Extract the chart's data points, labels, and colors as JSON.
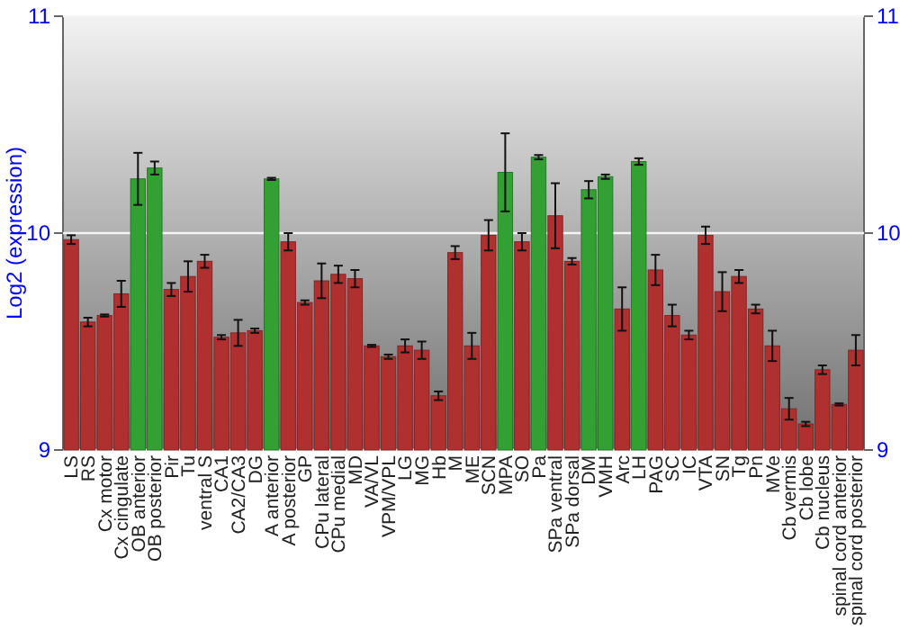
{
  "chart_data": {
    "type": "bar",
    "ylabel": "Log2 (expression)",
    "categories": [
      "LS",
      "RS",
      "Cx motor",
      "Cx cingulate",
      "OB anterior",
      "OB posterior",
      "Pir",
      "Tu",
      "ventral S",
      "CA1",
      "CA2/CA3",
      "DG",
      "A anterior",
      "A posterior",
      "GP",
      "CPu lateral",
      "CPu medial",
      "MD",
      "VA/VL",
      "VPM/VPL",
      "LG",
      "MG",
      "Hb",
      "M",
      "ME",
      "SCN",
      "MPA",
      "SO",
      "Pa",
      "SPa ventral",
      "SPa dorsal",
      "DM",
      "VMH",
      "Arc",
      "LH",
      "PAG",
      "SC",
      "IC",
      "VTA",
      "SN",
      "Tg",
      "Pn",
      "MVe",
      "Cb vermis",
      "Cb lobe",
      "Cb nucleus",
      "spinal cord anterior",
      "spinal cord posterior"
    ],
    "values": [
      9.97,
      9.59,
      9.62,
      9.72,
      10.25,
      10.3,
      9.74,
      9.8,
      9.87,
      9.52,
      9.54,
      9.55,
      10.25,
      9.96,
      9.68,
      9.78,
      9.81,
      9.79,
      9.48,
      9.43,
      9.48,
      9.46,
      9.25,
      9.91,
      9.48,
      9.99,
      10.28,
      9.96,
      10.35,
      10.08,
      9.87,
      10.2,
      10.26,
      9.65,
      10.33,
      9.83,
      9.62,
      9.53,
      9.99,
      9.73,
      9.8,
      9.65,
      9.48,
      9.19,
      9.12,
      9.37,
      9.21,
      9.46
    ],
    "errors": [
      0.02,
      0.02,
      0.005,
      0.06,
      0.12,
      0.03,
      0.03,
      0.07,
      0.03,
      0.01,
      0.06,
      0.01,
      0.005,
      0.04,
      0.01,
      0.08,
      0.04,
      0.04,
      0.005,
      0.01,
      0.03,
      0.04,
      0.02,
      0.03,
      0.06,
      0.07,
      0.18,
      0.04,
      0.01,
      0.15,
      0.015,
      0.04,
      0.01,
      0.1,
      0.015,
      0.07,
      0.05,
      0.02,
      0.04,
      0.09,
      0.03,
      0.02,
      0.07,
      0.05,
      0.01,
      0.02,
      0.005,
      0.07
    ],
    "colors": [
      "#b03030",
      "#b03030",
      "#b03030",
      "#b03030",
      "#33a033",
      "#33a033",
      "#b03030",
      "#b03030",
      "#b03030",
      "#b03030",
      "#b03030",
      "#b03030",
      "#33a033",
      "#b03030",
      "#b03030",
      "#b03030",
      "#b03030",
      "#b03030",
      "#b03030",
      "#b03030",
      "#b03030",
      "#b03030",
      "#b03030",
      "#b03030",
      "#b03030",
      "#b03030",
      "#33a033",
      "#b03030",
      "#33a033",
      "#b03030",
      "#b03030",
      "#33a033",
      "#33a033",
      "#b03030",
      "#33a033",
      "#b03030",
      "#b03030",
      "#b03030",
      "#b03030",
      "#b03030",
      "#b03030",
      "#b03030",
      "#b03030",
      "#b03030",
      "#b03030",
      "#b03030",
      "#b03030",
      "#b03030"
    ],
    "ylim": [
      9,
      11
    ],
    "yticks": [
      9,
      10,
      11
    ],
    "y2lim": [
      9,
      11
    ],
    "y2ticks": [
      9,
      10,
      11
    ],
    "grid": "y"
  }
}
